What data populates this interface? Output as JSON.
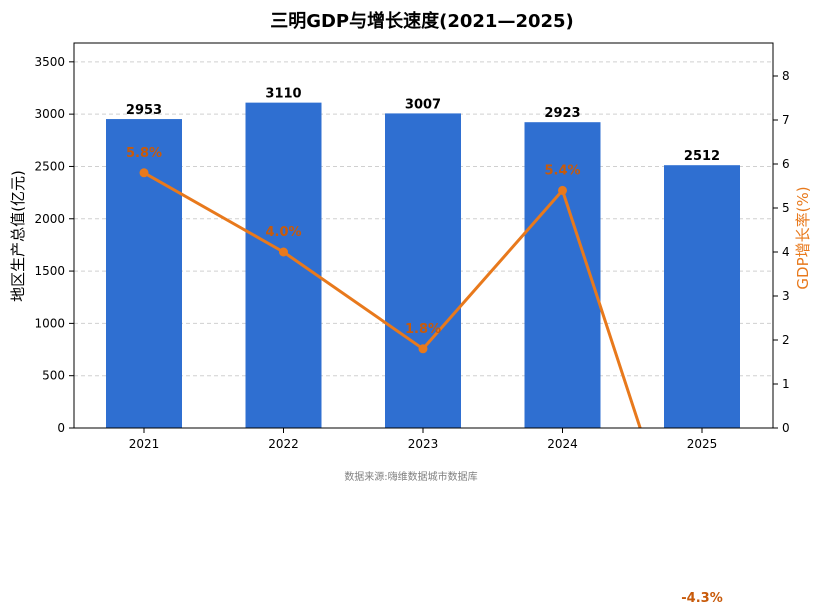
{
  "chart_data": {
    "type": "bar",
    "title": "三明GDP与增长速度(2021—2025)",
    "categories": [
      "2021",
      "2022",
      "2023",
      "2024",
      "2025"
    ],
    "series": [
      {
        "name": "",
        "axis": "left",
        "type": "bar",
        "values": [
          2953,
          3110,
          3007,
          2923,
          2512
        ],
        "labels": [
          "2953",
          "3110",
          "3007",
          "2923",
          "2512"
        ]
      },
      {
        "name": "",
        "axis": "right",
        "type": "line",
        "values": [
          5.8,
          4.0,
          1.8,
          5.4,
          -4.3
        ],
        "labels": [
          "5.8%",
          "4.0%",
          "1.8%",
          "5.4%",
          "-4.3%"
        ]
      }
    ],
    "ylabel": "地区生产总值(亿元)",
    "y2label": "GDP增长率(%)",
    "ylim": [
      0,
      3680
    ],
    "y2lim": [
      0,
      8.75
    ],
    "yticks": [
      "0",
      "500",
      "1000",
      "1500",
      "2000",
      "2500",
      "3000",
      "3500"
    ],
    "y2ticks": [
      "0",
      "1",
      "2",
      "3",
      "4",
      "5",
      "6",
      "7",
      "8"
    ],
    "grid": true,
    "colors": {
      "bar": "#2f6fd1",
      "line": "#e8791c",
      "pct_label": "#c85a0a",
      "grid": "#d0d0d0",
      "source": "#808080"
    },
    "source": "数据来源:嗨维数据城市数据库"
  }
}
